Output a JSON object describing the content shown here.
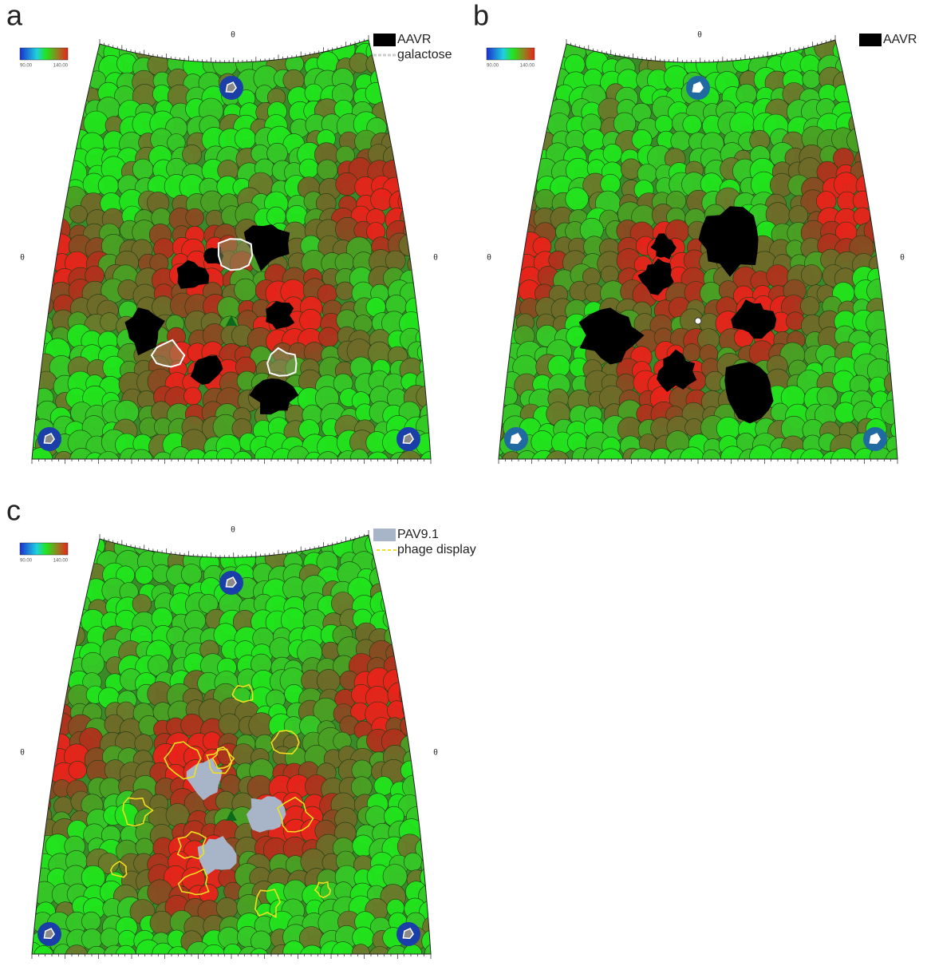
{
  "panels": [
    {
      "label": "a",
      "legend": [
        "AAVR",
        "galactose"
      ],
      "colorbar": {
        "min": "90.00",
        "max": "140.00"
      },
      "axis_symbols": {
        "top": "θ",
        "left": "θ",
        "right": "θ"
      }
    },
    {
      "label": "b",
      "legend": [
        "AAVR"
      ],
      "colorbar": {
        "min": "90.00",
        "max": "140.00"
      },
      "axis_symbols": {
        "top": "θ",
        "left": "θ",
        "right": "θ"
      }
    },
    {
      "label": "c",
      "legend": [
        "PAV9.1",
        "phage display"
      ],
      "colorbar": {
        "min": "90.00",
        "max": "140.00"
      },
      "axis_symbols": {
        "top": "θ",
        "left": "θ",
        "right": "θ"
      }
    }
  ]
}
